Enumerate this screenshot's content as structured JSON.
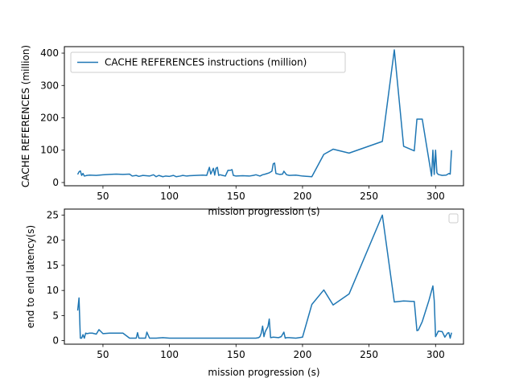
{
  "chart_data": [
    {
      "type": "line",
      "title": "",
      "xlabel": "mission  progression (s)",
      "ylabel": "CACHE REFERENCES (million)",
      "xlim": [
        21,
        321
      ],
      "ylim": [
        -10,
        420
      ],
      "xticks": [
        50,
        100,
        150,
        200,
        250,
        300
      ],
      "yticks": [
        0,
        100,
        200,
        300,
        400
      ],
      "grid": false,
      "legend_position": "upper left",
      "series": [
        {
          "name": "CACHE REFERENCES instructions (million)",
          "color": "#1f77b4",
          "x": [
            31,
            32,
            33,
            34,
            35,
            36,
            38,
            40,
            45,
            50,
            55,
            60,
            65,
            70,
            72,
            75,
            77,
            80,
            85,
            88,
            90,
            92,
            95,
            97,
            100,
            103,
            105,
            108,
            110,
            113,
            115,
            120,
            125,
            128,
            129,
            130,
            131,
            133,
            134,
            135,
            136,
            137,
            138,
            140,
            142,
            144,
            146,
            147,
            148,
            150,
            155,
            160,
            163,
            165,
            168,
            170,
            172,
            175,
            177,
            178,
            179,
            180,
            183,
            185,
            186,
            188,
            190,
            195,
            200,
            207,
            216,
            223,
            235,
            260,
            269,
            276,
            284,
            286,
            290,
            293,
            297,
            298,
            299,
            300,
            301,
            302,
            305,
            308,
            310,
            311,
            312
          ],
          "y": [
            25,
            33,
            36,
            22,
            28,
            20,
            22,
            23,
            22,
            24,
            25,
            26,
            25,
            26,
            20,
            22,
            19,
            22,
            20,
            24,
            18,
            22,
            18,
            20,
            19,
            22,
            18,
            20,
            22,
            20,
            21,
            22,
            23,
            22,
            35,
            47,
            26,
            44,
            23,
            44,
            47,
            22,
            24,
            22,
            20,
            38,
            38,
            40,
            22,
            20,
            21,
            20,
            22,
            24,
            20,
            24,
            26,
            30,
            35,
            58,
            60,
            28,
            25,
            26,
            35,
            24,
            22,
            23,
            20,
            18,
            87,
            103,
            91,
            127,
            410,
            112,
            98,
            196,
            196,
            120,
            20,
            100,
            25,
            100,
            30,
            25,
            22,
            23,
            28,
            26,
            100
          ]
        }
      ]
    },
    {
      "type": "line",
      "title": "",
      "xlabel": "mission  progression (s)",
      "ylabel": "end to end latency(s)",
      "xlim": [
        21,
        321
      ],
      "ylim": [
        -0.7,
        26.2
      ],
      "xticks": [
        50,
        100,
        150,
        200,
        250,
        300
      ],
      "yticks": [
        0,
        5,
        10,
        15,
        20,
        25
      ],
      "grid": false,
      "legend_position": "upper right",
      "series": [
        {
          "color": "#1f77b4",
          "x": [
            31,
            32,
            33,
            34,
            35,
            36,
            37,
            38,
            40,
            42,
            45,
            47,
            50,
            55,
            60,
            65,
            70,
            72,
            75,
            76,
            77,
            80,
            82,
            83,
            85,
            90,
            95,
            100,
            110,
            120,
            130,
            140,
            150,
            160,
            165,
            167,
            168,
            169,
            170,
            171,
            172,
            174,
            175,
            176,
            178,
            182,
            184,
            186,
            187,
            188,
            190,
            195,
            200,
            207,
            216,
            223,
            235,
            260,
            269,
            276,
            284,
            286,
            287,
            290,
            295,
            298,
            299,
            300,
            301,
            302,
            305,
            307,
            309,
            310,
            311,
            312
          ],
          "y": [
            6,
            8.5,
            0.5,
            0.5,
            1.2,
            0.5,
            1.5,
            1.4,
            1.5,
            1.5,
            1.3,
            2.2,
            1.4,
            1.5,
            1.5,
            1.5,
            0.5,
            0.5,
            0.5,
            1.6,
            0.5,
            0.5,
            0.5,
            1.7,
            0.5,
            0.5,
            0.6,
            0.5,
            0.5,
            0.5,
            0.5,
            0.5,
            0.5,
            0.5,
            0.5,
            0.6,
            0.8,
            1.5,
            2.9,
            0.8,
            1.8,
            2.8,
            4.3,
            0.6,
            0.7,
            0.6,
            0.8,
            1.7,
            0.5,
            0.6,
            0.6,
            0.5,
            0.7,
            7.2,
            10.1,
            7.1,
            9.3,
            25,
            7.7,
            7.9,
            7.8,
            2.0,
            2.1,
            3.8,
            8.0,
            10.9,
            8.0,
            0.8,
            1.3,
            1.9,
            1.8,
            0.7,
            1.5,
            1.6,
            0.5,
            1.6
          ]
        }
      ]
    }
  ]
}
